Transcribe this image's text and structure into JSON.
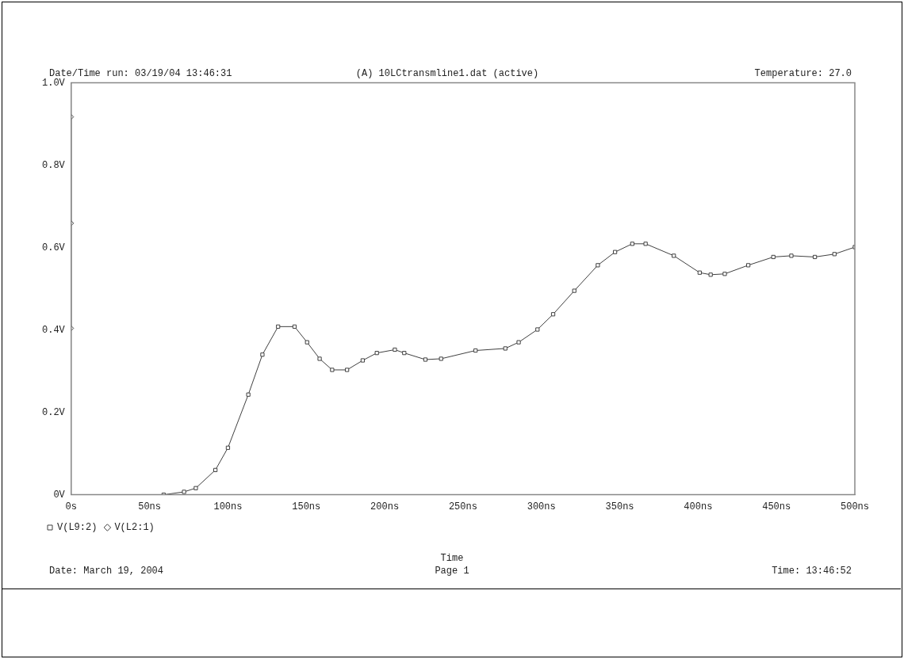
{
  "chart_data": {
    "type": "line",
    "title": "(A) 10LCtransmline1.dat (active)",
    "xlabel": "Time",
    "annotations": [
      "Date/Time run: 03/19/04 13:46:31",
      "Temperature: 27.0",
      "Date: March 19, 2004",
      "Page 1",
      "Time: 13:46:52"
    ],
    "xlim": [
      0,
      500
    ],
    "xticks": [
      {
        "value": 0,
        "label": "0s"
      },
      {
        "value": 50,
        "label": "50ns"
      },
      {
        "value": 100,
        "label": "100ns"
      },
      {
        "value": 150,
        "label": "150ns"
      },
      {
        "value": 200,
        "label": "200ns"
      },
      {
        "value": 250,
        "label": "250ns"
      },
      {
        "value": 300,
        "label": "300ns"
      },
      {
        "value": 350,
        "label": "350ns"
      },
      {
        "value": 400,
        "label": "400ns"
      },
      {
        "value": 450,
        "label": "450ns"
      },
      {
        "value": 500,
        "label": "500ns"
      }
    ],
    "ylim": [
      0,
      1
    ],
    "yticks": [
      {
        "value": 0,
        "label": "0V"
      },
      {
        "value": 0.2,
        "label": "0.2V"
      },
      {
        "value": 0.4,
        "label": "0.4V"
      },
      {
        "value": 0.6,
        "label": "0.6V"
      },
      {
        "value": 0.8,
        "label": "0.8V"
      },
      {
        "value": 1,
        "label": "1.0V"
      }
    ],
    "grid": false,
    "legend": "bottom left",
    "series": [
      {
        "name": "V(L9:2)",
        "color": "#404040",
        "marker": "square",
        "x": [
          59,
          72,
          79.5,
          92,
          100,
          113,
          122,
          132,
          142.5,
          150.5,
          158.5,
          166.5,
          176,
          186,
          195,
          206.5,
          212.5,
          226,
          236,
          258,
          277,
          285.5,
          297.5,
          307.5,
          321,
          336,
          347,
          358,
          366.5,
          384.5,
          401,
          408,
          417,
          432,
          448,
          459.5,
          474.5,
          487,
          500
        ],
        "values": [
          0,
          0.007,
          0.016,
          0.06,
          0.114,
          0.243,
          0.34,
          0.408,
          0.408,
          0.37,
          0.33,
          0.303,
          0.303,
          0.326,
          0.344,
          0.352,
          0.344,
          0.328,
          0.33,
          0.35,
          0.355,
          0.37,
          0.401,
          0.438,
          0.495,
          0.557,
          0.589,
          0.609,
          0.609,
          0.58,
          0.539,
          0.534,
          0.536,
          0.557,
          0.577,
          0.58,
          0.577,
          0.584,
          0.601
        ]
      },
      {
        "name": "V(L2:1)",
        "color": "#404040",
        "marker": "diamond",
        "x": [
          0,
          0,
          0
        ],
        "values": [
          0.404,
          0.659,
          0.917
        ]
      }
    ]
  }
}
